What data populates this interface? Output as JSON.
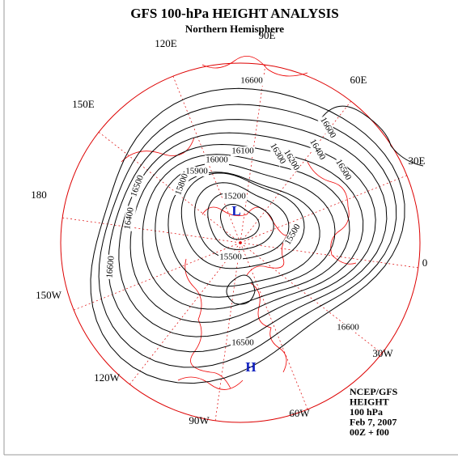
{
  "header": {
    "title": "GFS 100-hPa HEIGHT ANALYSIS",
    "subtitle": "Northern Hemisphere"
  },
  "longitude_labels": [
    "90E",
    "60E",
    "30E",
    "0",
    "30W",
    "60W",
    "90W",
    "120W",
    "150W",
    "180",
    "150E",
    "120E"
  ],
  "contour_labels": [
    "16600",
    "16100",
    "16000",
    "15900",
    "15800",
    "16300",
    "16200",
    "16400",
    "16500",
    "16600",
    "16500",
    "16400",
    "16600",
    "15200",
    "15500",
    "15500",
    "16600",
    "16500"
  ],
  "centers": [
    "L",
    "H"
  ],
  "info": [
    "NCEP/GFS",
    "HEIGHT",
    "100 hPa",
    "Feb 7, 2007",
    "00Z + f00"
  ]
}
